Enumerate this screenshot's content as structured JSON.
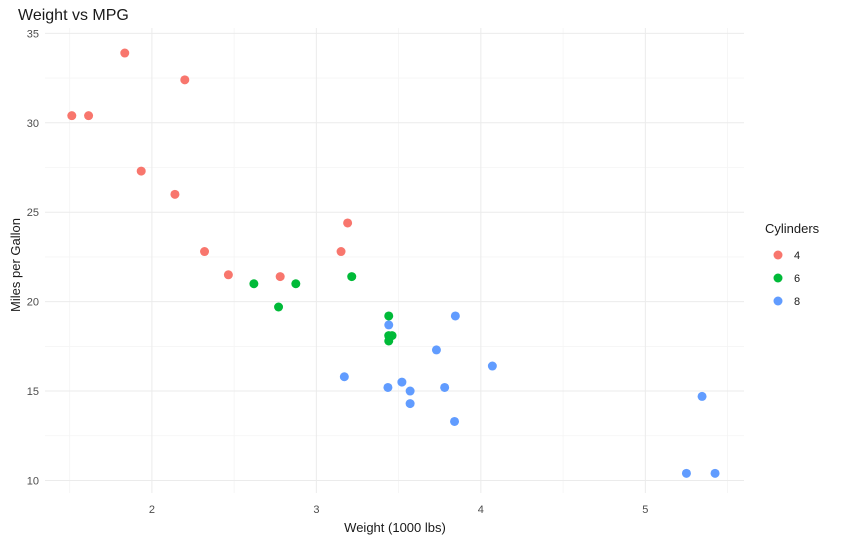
{
  "chart_data": {
    "type": "scatter",
    "title": "Weight vs MPG",
    "xlabel": "Weight (1000 lbs)",
    "ylabel": "Miles per Gallon",
    "xlim": [
      1.35,
      5.6
    ],
    "ylim": [
      9.3,
      35.3
    ],
    "x_ticks": [
      2,
      3,
      4,
      5
    ],
    "y_ticks": [
      10,
      15,
      20,
      25,
      30,
      35
    ],
    "grid": true,
    "legend": {
      "title": "Cylinders",
      "placement": "right"
    },
    "series": [
      {
        "name": "4",
        "color": "#F8766D",
        "points": [
          [
            1.513,
            30.4
          ],
          [
            1.615,
            30.4
          ],
          [
            1.835,
            33.9
          ],
          [
            1.935,
            27.3
          ],
          [
            2.14,
            26.0
          ],
          [
            2.2,
            32.4
          ],
          [
            2.32,
            22.8
          ],
          [
            2.465,
            21.5
          ],
          [
            2.78,
            21.4
          ],
          [
            3.15,
            22.8
          ],
          [
            3.19,
            24.4
          ]
        ]
      },
      {
        "name": "6",
        "color": "#00BA38",
        "points": [
          [
            2.62,
            21.0
          ],
          [
            2.77,
            19.7
          ],
          [
            2.875,
            21.0
          ],
          [
            3.215,
            21.4
          ],
          [
            3.44,
            18.1
          ],
          [
            3.44,
            17.8
          ],
          [
            3.46,
            18.1
          ],
          [
            3.44,
            19.2
          ]
        ]
      },
      {
        "name": "8",
        "color": "#619CFF",
        "points": [
          [
            3.17,
            15.8
          ],
          [
            3.435,
            15.2
          ],
          [
            3.44,
            18.7
          ],
          [
            3.52,
            15.5
          ],
          [
            3.57,
            15.0
          ],
          [
            3.57,
            14.3
          ],
          [
            3.73,
            17.3
          ],
          [
            3.78,
            15.2
          ],
          [
            3.84,
            13.3
          ],
          [
            3.845,
            19.2
          ],
          [
            4.07,
            16.4
          ],
          [
            5.25,
            10.4
          ],
          [
            5.345,
            14.7
          ],
          [
            5.424,
            10.4
          ]
        ]
      }
    ]
  }
}
